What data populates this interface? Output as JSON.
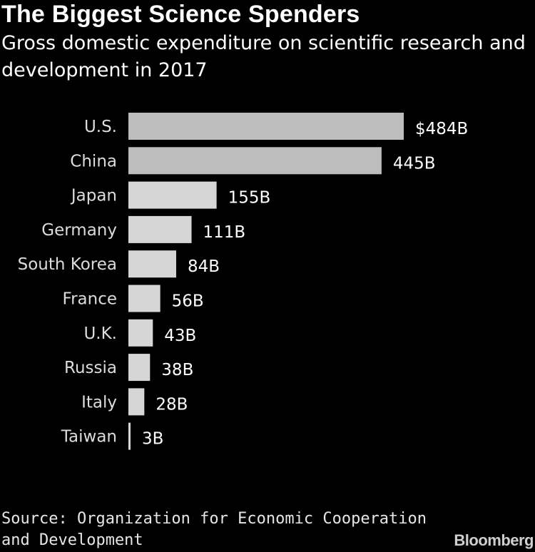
{
  "header": {
    "title": "The Biggest Science Spenders",
    "subtitle": "Gross domestic expenditure on scientific research and development in 2017"
  },
  "footer": {
    "source": "Source: Organization for Economic Cooperation and Development",
    "brand": "Bloomberg"
  },
  "colors": {
    "background": "#000000",
    "bar_top": "#bdbdbd",
    "bar_other": "#d6d6d6",
    "text": "#ffffff"
  },
  "chart_data": {
    "type": "bar",
    "orientation": "horizontal",
    "title": "The Biggest Science Spenders",
    "subtitle": "Gross domestic expenditure on scientific research and development in 2017",
    "categories": [
      "U.S.",
      "China",
      "Japan",
      "Germany",
      "South Korea",
      "France",
      "U.K.",
      "Russia",
      "Italy",
      "Taiwan"
    ],
    "values": [
      484,
      445,
      155,
      111,
      84,
      56,
      43,
      38,
      28,
      3
    ],
    "value_labels": [
      "$484B",
      "445B",
      "155B",
      "111B",
      "84B",
      "56B",
      "43B",
      "38B",
      "28B",
      "3B"
    ],
    "unit": "B",
    "xlim": [
      0,
      484
    ],
    "grid": false,
    "legend": "none"
  }
}
